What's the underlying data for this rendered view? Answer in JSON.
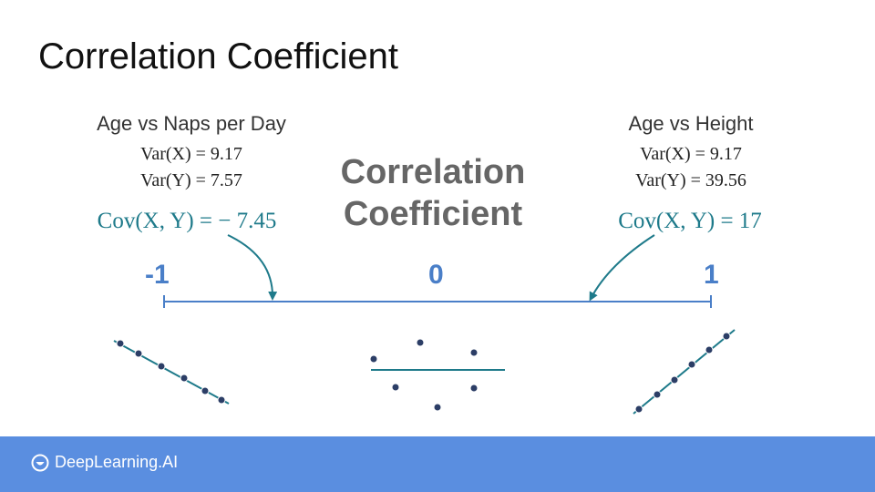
{
  "title": "Correlation Coefficient",
  "center_label": [
    "Correlation",
    "Coefficient"
  ],
  "left_panel": {
    "title": "Age vs Naps per Day",
    "var_x": "Var(X) = 9.17",
    "var_y": "Var(Y) = 7.57",
    "cov": "Cov(X, Y) = − 7.45"
  },
  "right_panel": {
    "title": "Age vs Height",
    "var_x": "Var(X) = 9.17",
    "var_y": "Var(Y) = 39.56",
    "cov": "Cov(X, Y) = 17"
  },
  "scale": {
    "min_label": "-1",
    "mid_label": "0",
    "max_label": "1"
  },
  "colors": {
    "accent": "#1e7a8a",
    "axis": "#4a7fc8",
    "point": "#2c3e66",
    "footer": "#5a8ee0"
  },
  "footer": {
    "brand": "DeepLearning.AI",
    "logo_icon": "deeplearning-logo-icon"
  }
}
